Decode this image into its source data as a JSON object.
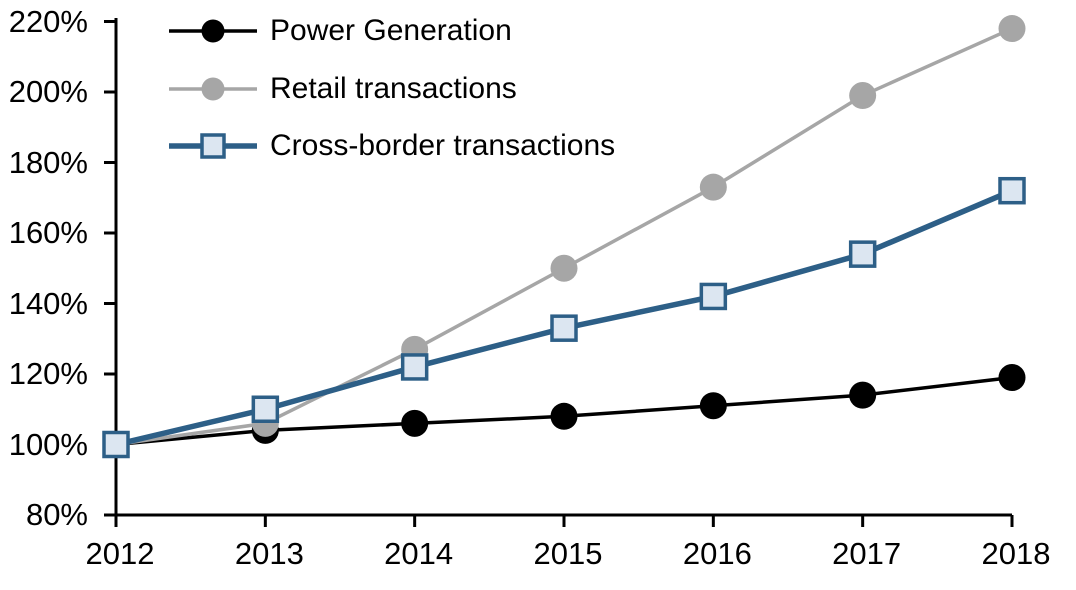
{
  "chart_data": {
    "type": "line",
    "title": "",
    "xlabel": "",
    "ylabel": "",
    "x": [
      2012,
      2013,
      2014,
      2015,
      2016,
      2017,
      2018
    ],
    "x_tick_labels": [
      "2012",
      "2013",
      "2014",
      "2015",
      "2016",
      "2017",
      "2018"
    ],
    "y_tick_labels": [
      "80%",
      "100%",
      "120%",
      "140%",
      "160%",
      "180%",
      "200%",
      "220%"
    ],
    "ylim": [
      80,
      220
    ],
    "y_tick_step": 20,
    "grid": false,
    "legend_position": "top-left",
    "axis_color": "#000000",
    "series": [
      {
        "name": "Power Generation",
        "marker": "circle",
        "line_color": "#000000",
        "marker_fill": "#000000",
        "values": [
          100,
          104,
          106,
          108,
          111,
          114,
          119
        ]
      },
      {
        "name": "Retail transactions",
        "marker": "circle",
        "line_color": "#a6a6a6",
        "marker_fill": "#a6a6a6",
        "values": [
          100,
          106,
          127,
          150,
          173,
          199,
          218
        ]
      },
      {
        "name": "Cross-border transactions",
        "marker": "square",
        "line_color": "#2d5f87",
        "marker_fill": "#dce6f1",
        "values": [
          100,
          110,
          122,
          133,
          142,
          154,
          172
        ]
      }
    ]
  }
}
